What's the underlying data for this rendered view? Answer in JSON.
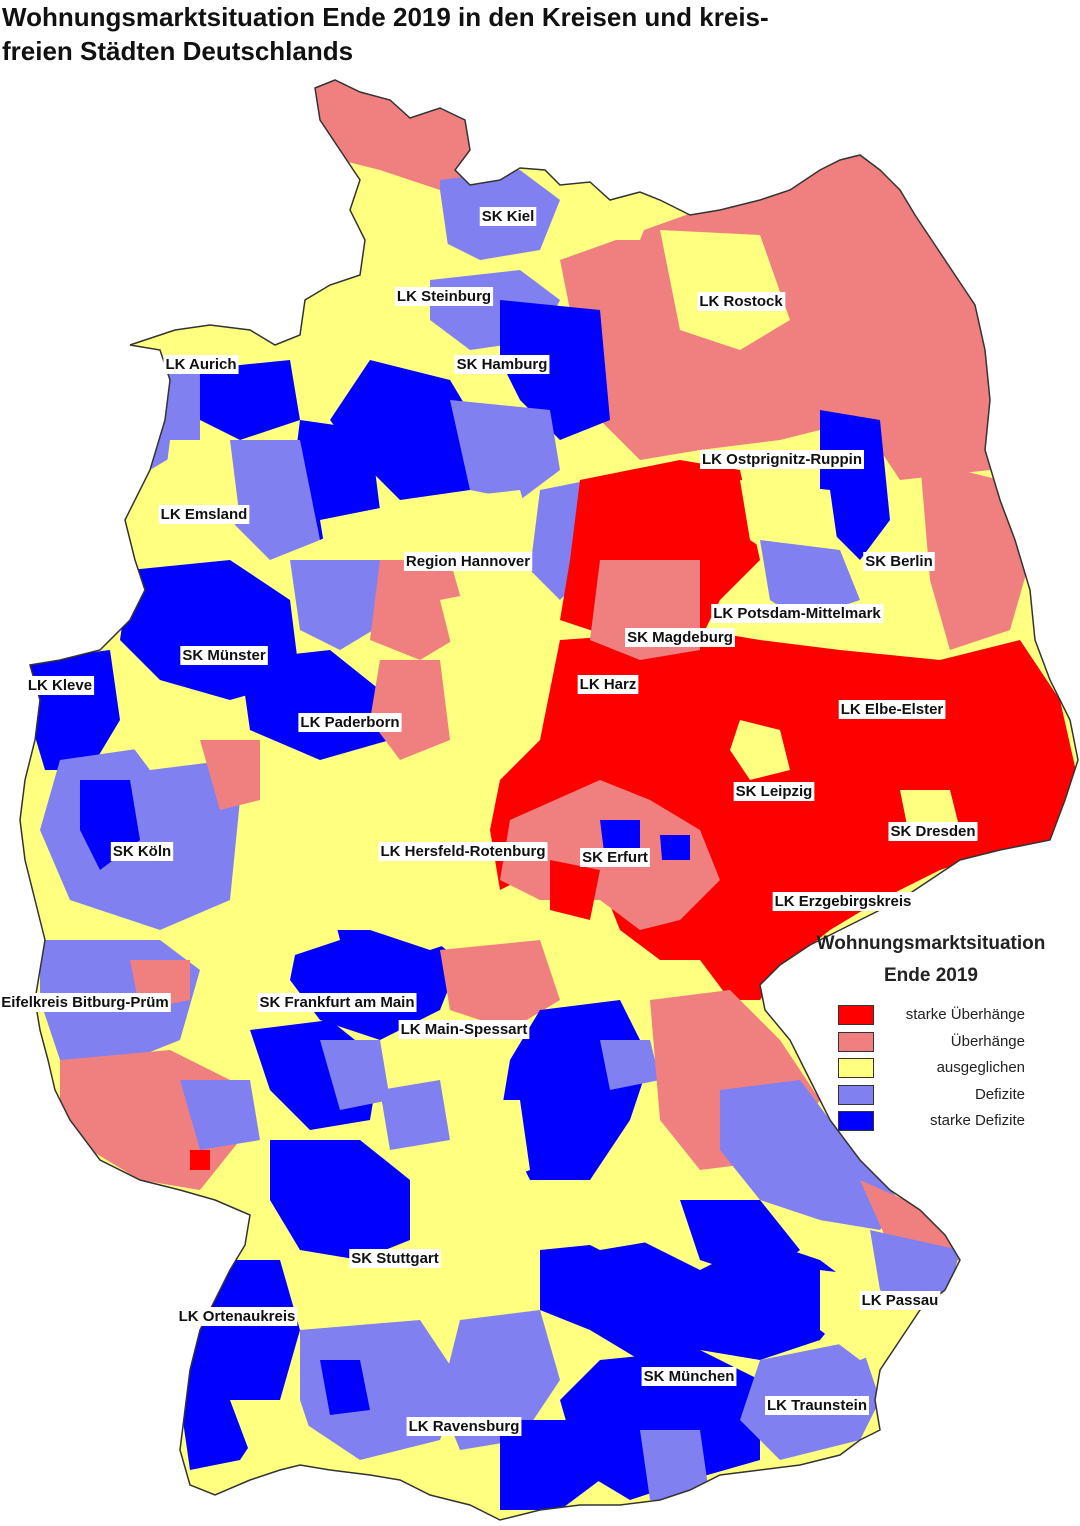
{
  "title": "Wohnungsmarktsituation Ende 2019 in den Kreisen und kreis-freien Städten Deutschlands",
  "title_lines": [
    "Wohnungsmarktsituation Ende 2019 in den Kreisen und kreis-",
    "freien Städten Deutschlands"
  ],
  "legend": {
    "title_lines": [
      "Wohnungsmarktsituation",
      "Ende 2019"
    ],
    "items": [
      {
        "label": "starke Überhänge",
        "color": "#ff0000"
      },
      {
        "label": "Überhänge",
        "color": "#f08080"
      },
      {
        "label": "ausgeglichen",
        "color": "#ffff80"
      },
      {
        "label": "Defizite",
        "color": "#8080f0"
      },
      {
        "label": "starke Defizite",
        "color": "#0000ff"
      }
    ]
  },
  "labels": [
    "SK Kiel",
    "LK Steinburg",
    "LK Rostock",
    "LK Aurich",
    "SK Hamburg",
    "LK Ostprignitz-Ruppin",
    "LK Emsland",
    "Region Hannover",
    "SK Berlin",
    "LK Potsdam-Mittelmark",
    "SK Magdeburg",
    "SK Münster",
    "LK Kleve",
    "LK Harz",
    "LK Elbe-Elster",
    "LK Paderborn",
    "SK Leipzig",
    "SK Dresden",
    "SK Köln",
    "LK Hersfeld-Rotenburg",
    "SK Erfurt",
    "LK Erzgebirgskreis",
    "Eifelkreis Bitburg-Prüm",
    "SK Frankfurt am Main",
    "LK Main-Spessart",
    "SK Stuttgart",
    "LK Passau",
    "LK Ortenaukreis",
    "SK München",
    "LK Traunstein",
    "LK Ravensburg"
  ]
}
